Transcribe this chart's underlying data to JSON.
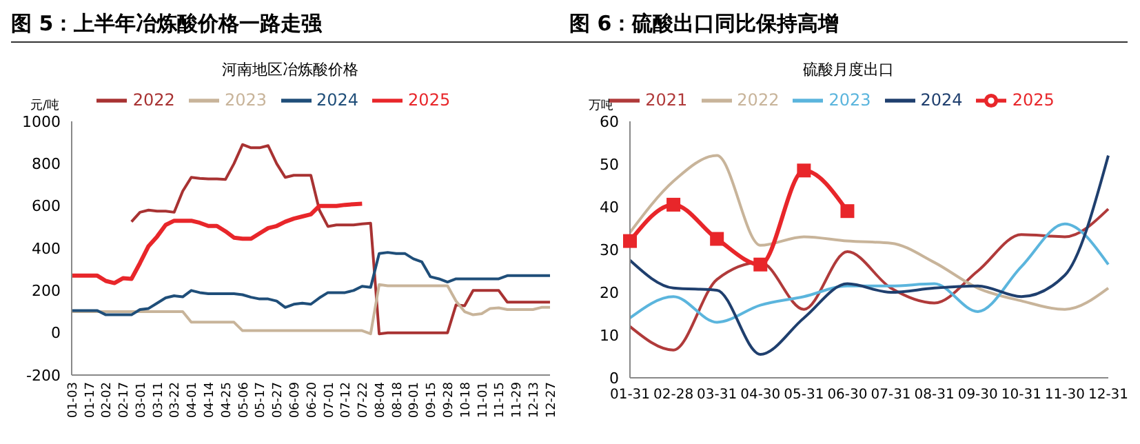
{
  "chart_data": [
    {
      "type": "line",
      "title": "图 5：上半年冶炼酸价格一路走强",
      "subtitle": "河南地区冶炼酸价格",
      "ylabel": "元/吨",
      "legend": "top",
      "categories": [
        "01-03",
        null,
        "01-17",
        null,
        "02-02",
        null,
        "02-17",
        null,
        "03-01",
        null,
        "03-11",
        null,
        "03-22",
        null,
        "04-01",
        null,
        "04-14",
        null,
        "04-25",
        null,
        "05-06",
        null,
        "05-17",
        null,
        "05-27",
        null,
        "06-09",
        null,
        "06-20",
        null,
        "07-01",
        null,
        "07-12",
        null,
        "07-22",
        null,
        "08-04",
        null,
        "08-18",
        null,
        "09-01",
        null,
        "09-15",
        null,
        "09-28",
        null,
        "10-18",
        null,
        "11-01",
        null,
        "11-15",
        null,
        "11-29",
        null,
        "12-13",
        null,
        "12-27"
      ],
      "ylim": [
        -200,
        1000
      ],
      "yticks": [
        -200,
        0,
        200,
        400,
        600,
        800,
        1000
      ],
      "series": [
        {
          "name": "2022",
          "color": "#a83232",
          "values": [
            null,
            null,
            null,
            null,
            null,
            null,
            null,
            525,
            570,
            580,
            575,
            575,
            570,
            670,
            735,
            730,
            728,
            728,
            725,
            800,
            890,
            875,
            875,
            885,
            800,
            735,
            745,
            745,
            745,
            580,
            503,
            510,
            510,
            510,
            515,
            518,
            -5,
            0,
            0,
            0,
            0,
            0,
            0,
            0,
            0,
            132,
            128,
            200,
            200,
            200,
            200,
            145,
            145,
            145,
            145,
            145,
            145
          ]
        },
        {
          "name": "2023",
          "color": "#c8b49a",
          "values": [
            100,
            100,
            100,
            100,
            100,
            100,
            100,
            100,
            100,
            100,
            100,
            100,
            100,
            100,
            50,
            50,
            50,
            50,
            50,
            50,
            10,
            10,
            10,
            10,
            10,
            10,
            10,
            10,
            10,
            10,
            10,
            10,
            10,
            10,
            10,
            -5,
            228,
            222,
            222,
            222,
            222,
            222,
            222,
            222,
            222,
            150,
            100,
            85,
            90,
            115,
            118,
            110,
            110,
            110,
            110,
            120,
            120
          ]
        },
        {
          "name": "2024",
          "color": "#1f4e79",
          "values": [
            105,
            105,
            105,
            105,
            85,
            85,
            85,
            85,
            110,
            115,
            140,
            165,
            175,
            170,
            200,
            190,
            185,
            185,
            185,
            185,
            180,
            168,
            160,
            160,
            150,
            120,
            135,
            140,
            135,
            165,
            190,
            190,
            190,
            200,
            220,
            215,
            375,
            380,
            375,
            375,
            350,
            335,
            265,
            255,
            240,
            255,
            255,
            255,
            255,
            255,
            255,
            270,
            270,
            270,
            270,
            270,
            270
          ]
        },
        {
          "name": "2025",
          "color": "#e8262a",
          "values": [
            270,
            270,
            270,
            270,
            245,
            235,
            258,
            255,
            330,
            410,
            455,
            510,
            530,
            530,
            530,
            520,
            505,
            505,
            480,
            450,
            445,
            445,
            470,
            495,
            505,
            525,
            540,
            550,
            560,
            600,
            600,
            600,
            605,
            608,
            610,
            null,
            null,
            null,
            null,
            null,
            null,
            null,
            null,
            null,
            null,
            null,
            null,
            null,
            null,
            null,
            null,
            null,
            null,
            null,
            null,
            null,
            null
          ]
        }
      ]
    },
    {
      "type": "line",
      "title": "图 6：硫酸出口同比保持高增",
      "subtitle": "硫酸月度出口",
      "ylabel": "万吨",
      "legend": "top",
      "categories": [
        "01-31",
        "02-28",
        "03-31",
        "04-30",
        "05-31",
        "06-30",
        "07-31",
        "08-31",
        "09-30",
        "10-31",
        "11-30",
        "12-31"
      ],
      "ylim": [
        0,
        60
      ],
      "yticks": [
        0,
        10,
        20,
        30,
        40,
        50,
        60
      ],
      "series": [
        {
          "name": "2021",
          "color": "#b03a3a",
          "values": [
            12,
            6.5,
            23,
            27,
            16,
            29.5,
            21,
            17.5,
            25,
            33.5,
            33,
            39.5
          ]
        },
        {
          "name": "2022",
          "color": "#c8b49a",
          "values": [
            34,
            46,
            52,
            31,
            33,
            32,
            31.5,
            27,
            21,
            18,
            16,
            21
          ]
        },
        {
          "name": "2023",
          "color": "#5bb5dd",
          "values": [
            14,
            19,
            13,
            17,
            19,
            21.5,
            21.5,
            22,
            15.5,
            26,
            36,
            26.5
          ]
        },
        {
          "name": "2024",
          "color": "#1f3f6e",
          "values": [
            27.5,
            21,
            20.5,
            5.5,
            14,
            22,
            20,
            21,
            21.5,
            19,
            24,
            52
          ]
        },
        {
          "name": "2025",
          "color": "#e8262a",
          "marker": "square",
          "values": [
            32,
            40.5,
            32.5,
            26.5,
            48.5,
            39,
            null,
            null,
            null,
            null,
            null,
            null
          ]
        }
      ]
    }
  ]
}
